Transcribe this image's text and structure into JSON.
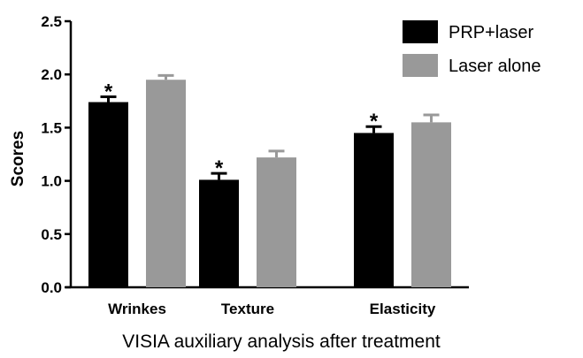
{
  "chart_data": {
    "type": "bar",
    "categories": [
      "Wrinkes",
      "Texture",
      "Elasticity"
    ],
    "series": [
      {
        "name": "PRP+laser",
        "color": "#000000",
        "values": [
          1.74,
          1.01,
          1.45
        ],
        "errors": [
          0.05,
          0.06,
          0.06
        ],
        "significance": [
          "*",
          "*",
          "*"
        ]
      },
      {
        "name": "Laser alone",
        "color": "#999999",
        "values": [
          1.95,
          1.22,
          1.55
        ],
        "errors": [
          0.04,
          0.06,
          0.07
        ],
        "significance": [
          "",
          "",
          ""
        ]
      }
    ],
    "xlabel": "VISIA auxiliary analysis after treatment",
    "ylabel": "Scores",
    "ylim": [
      0,
      2.5
    ],
    "yticks": [
      "0.0",
      "0.5",
      "1.0",
      "1.5",
      "2.0",
      "2.5"
    ],
    "grid": false,
    "legend_position": "top-right"
  }
}
